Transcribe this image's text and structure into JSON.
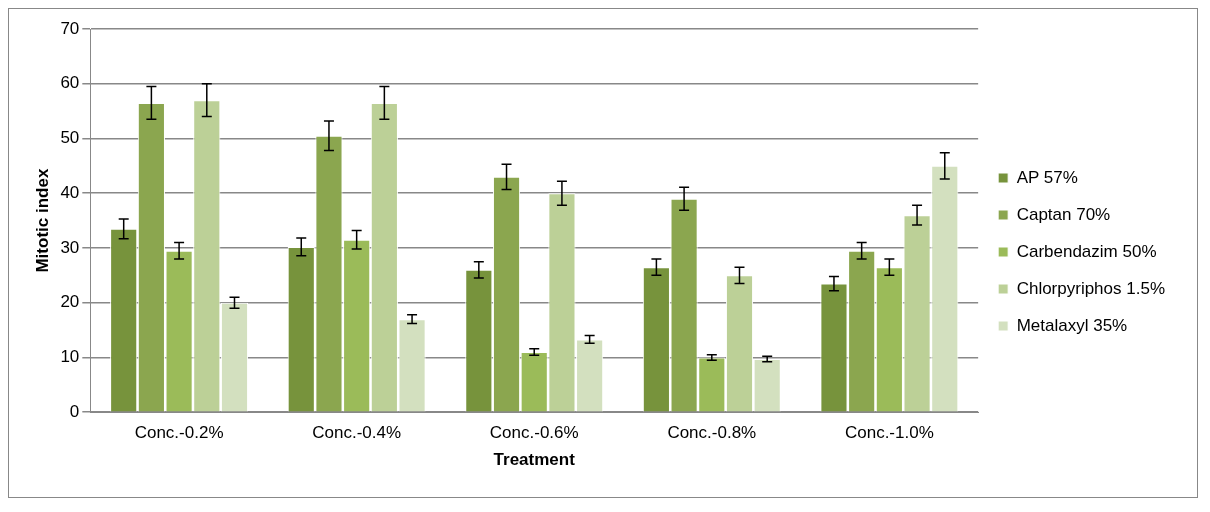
{
  "chart_data": {
    "type": "bar",
    "xlabel": "Treatment",
    "ylabel": "Mitotic index",
    "categories": [
      "Conc.-0.2%",
      "Conc.-0.4%",
      "Conc.-0.6%",
      "Conc.-0.8%",
      "Conc.-1.0%"
    ],
    "series": [
      {
        "name": "AP 57%",
        "color": "#77933c",
        "values": [
          33.5,
          30.2,
          26,
          26.5,
          23.5
        ],
        "errors": [
          1.8,
          1.6,
          1.5,
          1.5,
          1.3
        ]
      },
      {
        "name": "Captan 70%",
        "color": "#8ba64f",
        "values": [
          56.5,
          50.5,
          43,
          39,
          29.5
        ],
        "errors": [
          3,
          2.7,
          2.3,
          2.1,
          1.5
        ]
      },
      {
        "name": "Carbendazim 50%",
        "color": "#9bbb59",
        "values": [
          29.5,
          31.5,
          11,
          10,
          26.5
        ],
        "errors": [
          1.5,
          1.7,
          0.6,
          0.5,
          1.5
        ]
      },
      {
        "name": "Chlorpyriphos 1.5%",
        "color": "#bcd097",
        "values": [
          57,
          56.5,
          40,
          25,
          36
        ],
        "errors": [
          3,
          3,
          2.2,
          1.5,
          1.8
        ]
      },
      {
        "name": "Metalaxyl 35%",
        "color": "#d3e0bf",
        "values": [
          20,
          17,
          13.3,
          9.7,
          45
        ],
        "errors": [
          1,
          0.8,
          0.7,
          0.5,
          2.4
        ]
      }
    ],
    "ylim": [
      0,
      70
    ],
    "yticks": [
      0,
      10,
      20,
      30,
      40,
      50,
      60,
      70
    ],
    "grid": "y",
    "legend": "right"
  }
}
